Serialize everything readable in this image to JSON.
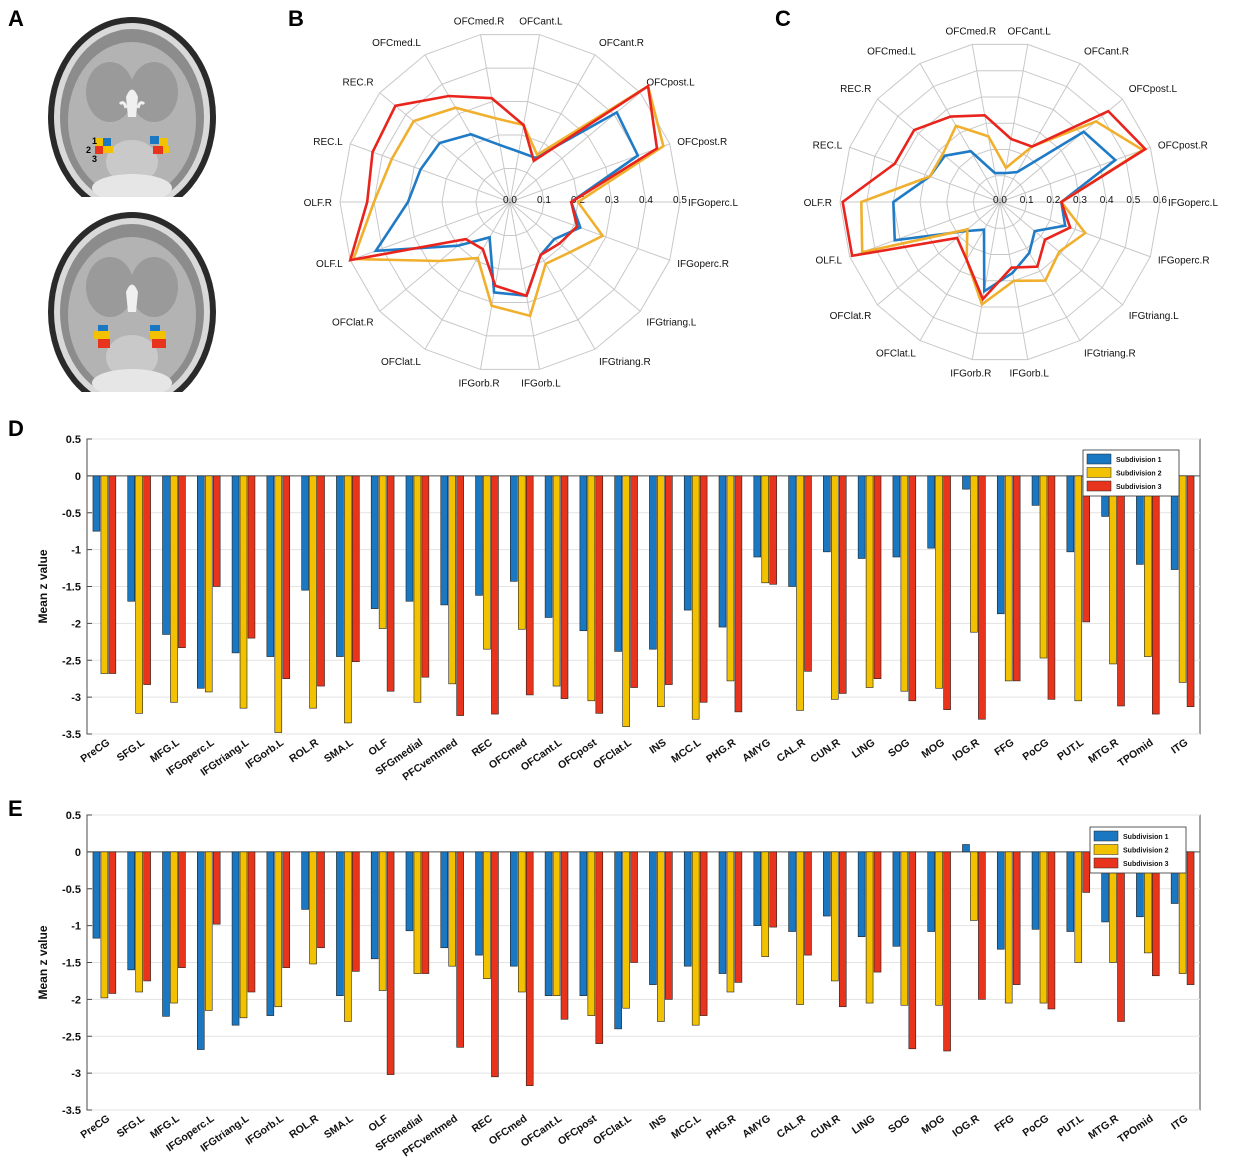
{
  "figure": {
    "panel_labels": [
      "A",
      "B",
      "C",
      "D",
      "E"
    ]
  },
  "colors": {
    "subdivision_1": "#1a78c2",
    "subdivision_2": "#f2c200",
    "subdivision_3": "#e8341c",
    "radar_s1": "#1f7bc6",
    "radar_s2": "#f0b02e",
    "radar_s3": "#e8241c",
    "grid": "#c8c8c8"
  },
  "chart_data": [
    {
      "panel": "B",
      "type": "radar",
      "axes": [
        "IFGoperc.L",
        "OFCpost.R",
        "OFCpost.L",
        "OFCant.R",
        "OFCant.L",
        "OFCmed.R",
        "OFCmed.L",
        "REC.R",
        "REC.L",
        "OLF.R",
        "OLF.L",
        "OFClat.R",
        "OFClat.L",
        "IFGorb.R",
        "IFGorb.L",
        "IFGtriang.R",
        "IFGtriang.L",
        "IFGoperc.R"
      ],
      "rings": [
        0.0,
        0.1,
        0.2,
        0.3,
        0.4,
        0.5
      ],
      "ring_labels": [
        "0.0",
        "0.1",
        "0.2",
        "0.3",
        "0.4",
        "0.5"
      ],
      "series": [
        {
          "values": [
            0.18,
            0.4,
            0.41,
            0.15,
            0.15,
            0.17,
            0.23,
            0.27,
            0.28,
            0.3,
            0.42,
            0.2,
            0.12,
            0.27,
            0.28,
            0.18,
            0.17,
            0.22
          ]
        },
        {
          "values": [
            0.2,
            0.48,
            0.53,
            0.16,
            0.23,
            0.25,
            0.32,
            0.37,
            0.37,
            0.4,
            0.49,
            0.27,
            0.19,
            0.31,
            0.34,
            0.21,
            0.23,
            0.29
          ]
        },
        {
          "values": [
            0.18,
            0.46,
            0.53,
            0.14,
            0.23,
            0.31,
            0.36,
            0.44,
            0.43,
            0.42,
            0.5,
            0.17,
            0.16,
            0.25,
            0.28,
            0.18,
            0.19,
            0.21
          ]
        }
      ]
    },
    {
      "panel": "C",
      "type": "radar",
      "axes": [
        "IFGoperc.L",
        "OFCpost.R",
        "OFCpost.L",
        "OFCant.R",
        "OFCant.L",
        "OFCmed.R",
        "OFCmed.L",
        "REC.R",
        "REC.L",
        "OLF.R",
        "OLF.L",
        "OFClat.R",
        "OFClat.L",
        "IFGorb.R",
        "IFGorb.L",
        "IFGtriang.R",
        "IFGtriang.L",
        "IFGoperc.R"
      ],
      "rings": [
        0.0,
        0.1,
        0.2,
        0.3,
        0.4,
        0.5,
        0.6
      ],
      "ring_labels": [
        "0.0",
        "0.1",
        "0.2",
        "0.3",
        "0.4",
        "0.5",
        "0.6"
      ],
      "series": [
        {
          "values": [
            0.23,
            0.46,
            0.41,
            0.13,
            0.11,
            0.11,
            0.22,
            0.27,
            0.28,
            0.4,
            0.42,
            0.17,
            0.12,
            0.34,
            0.27,
            0.22,
            0.17,
            0.26
          ]
        },
        {
          "values": [
            0.23,
            0.57,
            0.47,
            0.24,
            0.13,
            0.25,
            0.33,
            0.28,
            0.28,
            0.52,
            0.55,
            0.16,
            0.25,
            0.39,
            0.3,
            0.34,
            0.29,
            0.34
          ]
        },
        {
          "values": [
            0.23,
            0.58,
            0.53,
            0.24,
            0.24,
            0.33,
            0.37,
            0.42,
            0.42,
            0.59,
            0.59,
            0.21,
            0.25,
            0.37,
            0.25,
            0.28,
            0.22,
            0.28
          ]
        }
      ]
    },
    {
      "panel": "D",
      "type": "bar",
      "categories": [
        "PreCG",
        "SFG.L",
        "MFG.L",
        "IFGoperc.L",
        "IFGtriang.L",
        "IFGorb.L",
        "ROL.R",
        "SMA.L",
        "OLF",
        "SFGmedial",
        "PFCventmed",
        "REC",
        "OFCmed",
        "OFCant.L",
        "OFCpost",
        "OFClat.L",
        "INS",
        "MCC.L",
        "PHG.R",
        "AMYG",
        "CAL.R",
        "CUN.R",
        "LING",
        "SOG",
        "MOG",
        "IOG.R",
        "FFG",
        "PoCG",
        "PUT.L",
        "MTG.R",
        "TPOmid",
        "ITG"
      ],
      "category_labels": [
        "PreCG",
        "SFG.L",
        "MFG.L",
        "IFGoperc.L",
        "IFGtriang.L",
        "IFGorb.L",
        "ROL.R",
        "SMA.L",
        "OLF",
        "SFGmedial",
        "PFCventmed",
        "REC",
        "OFCmed",
        "OFCant.L",
        "OFCpost",
        "OFClat.L",
        "INS",
        "MCC.L",
        "PHG.R",
        "AMYG",
        "CAL.R",
        "CUN.R",
        "LING",
        "SOG",
        "MOG",
        "IOG.R",
        "FFG",
        "PoCG",
        "PUT.L",
        "MTG.R",
        "TPOmid",
        "ITG"
      ],
      "ylabel": "Mean z value",
      "ylim": [
        -3.5,
        0.5
      ],
      "yticks": [
        0.5,
        0,
        -0.5,
        -1,
        -1.5,
        -2,
        -2.5,
        -3,
        -3.5
      ],
      "ytick_labels": [
        "0.5",
        "0",
        "-0.5",
        "-1",
        "-1.5",
        "-2",
        "-2.5",
        "-3",
        "-3.5"
      ],
      "legend": [
        "Subdivision 1",
        "Subdivision 2",
        "Subdivision 3"
      ],
      "legend_position": "top-right",
      "series": [
        {
          "name": "Subdivision 1",
          "values": [
            -0.75,
            -1.7,
            -2.15,
            -2.88,
            -2.4,
            -2.45,
            -1.55,
            -2.45,
            -1.8,
            -1.7,
            -1.75,
            -1.62,
            -1.43,
            -1.92,
            -2.1,
            -2.38,
            -2.35,
            -1.82,
            -2.05,
            -1.1,
            -1.5,
            -1.03,
            -1.12,
            -1.1,
            -0.98,
            -0.18,
            -1.87,
            -0.4,
            -1.03,
            -0.55,
            -1.2,
            -1.27
          ]
        },
        {
          "name": "Subdivision 2",
          "values": [
            -2.68,
            -3.22,
            -3.07,
            -2.93,
            -3.15,
            -3.48,
            -3.15,
            -3.35,
            -2.07,
            -3.07,
            -2.82,
            -2.35,
            -2.08,
            -2.85,
            -3.05,
            -3.4,
            -3.13,
            -3.3,
            -2.78,
            -1.45,
            -3.18,
            -3.03,
            -2.87,
            -2.92,
            -2.88,
            -2.12,
            -2.78,
            -2.47,
            -3.05,
            -2.55,
            -2.45,
            -2.8
          ]
        },
        {
          "name": "Subdivision 3",
          "values": [
            -2.68,
            -2.83,
            -2.33,
            -1.5,
            -2.2,
            -2.75,
            -2.85,
            -2.52,
            -2.92,
            -2.73,
            -3.25,
            -3.23,
            -2.97,
            -3.02,
            -3.22,
            -2.87,
            -2.83,
            -3.07,
            -3.2,
            -1.47,
            -2.65,
            -2.95,
            -2.75,
            -3.05,
            -3.17,
            -3.3,
            -2.78,
            -3.03,
            -1.98,
            -3.12,
            -3.23,
            -3.13
          ]
        }
      ]
    },
    {
      "panel": "E",
      "type": "bar",
      "categories": [
        "PreCG",
        "SFG.L",
        "MFG.L",
        "IFGoperc.L",
        "IFGtriang.L",
        "IFGorb.L",
        "ROL.R",
        "SMA.L",
        "OLF",
        "SFGmedial",
        "PFCventmed",
        "REC",
        "OFCmed",
        "OFCant.L",
        "OFCpost",
        "OFClat.L",
        "INS",
        "MCC.L",
        "PHG.R",
        "AMYG",
        "CAL.R",
        "CUN.R",
        "LING",
        "SOG",
        "MOG",
        "IOG.R",
        "FFG",
        "PoCG",
        "PUT.L",
        "MTG.R",
        "TPOmid",
        "ITG"
      ],
      "category_labels": [
        "PreCG",
        "SFG.L",
        "MFG.L",
        "IFGoperc.L",
        "IFGtriang.L",
        "IFGorb.L",
        "ROL.R",
        "SMA.L",
        "OLF",
        "SFGmedial",
        "PFCventmed",
        "REC",
        "OFCmed",
        "OFCant.L",
        "OFCpost",
        "OFClat.L",
        "INS",
        "MCC.L",
        "PHG.R",
        "AMYG",
        "CAL.R",
        "CUN.R",
        "LING",
        "SOG",
        "MOG",
        "IOG.R",
        "FFG",
        "PoCG",
        "PUT.L",
        "MTG.R",
        "TPOmid",
        "ITG"
      ],
      "ylabel": "Mean z value",
      "ylim": [
        -3.5,
        0.5
      ],
      "yticks": [
        0.5,
        0,
        -0.5,
        -1,
        -1.5,
        -2,
        -2.5,
        -3,
        -3.5
      ],
      "ytick_labels": [
        "0.5",
        "0",
        "-0.5",
        "-1",
        "-1.5",
        "-2",
        "-2.5",
        "-3",
        "-3.5"
      ],
      "legend": [
        "Subdivision 1",
        "Subdivision 2",
        "Subdivision 3"
      ],
      "legend_position": "top-right",
      "series": [
        {
          "name": "Subdivision 1",
          "values": [
            -1.17,
            -1.6,
            -2.23,
            -2.68,
            -2.35,
            -2.22,
            -0.78,
            -1.95,
            -1.45,
            -1.07,
            -1.3,
            -1.4,
            -1.55,
            -1.95,
            -1.95,
            -2.4,
            -1.8,
            -1.55,
            -1.65,
            -1.0,
            -1.08,
            -0.87,
            -1.15,
            -1.28,
            -1.08,
            0.1,
            -1.32,
            -1.05,
            -1.08,
            -0.95,
            -0.88,
            -0.7
          ]
        },
        {
          "name": "Subdivision 2",
          "values": [
            -1.98,
            -1.9,
            -2.05,
            -2.15,
            -2.25,
            -2.1,
            -1.52,
            -2.3,
            -1.88,
            -1.65,
            -1.55,
            -1.72,
            -1.9,
            -1.95,
            -2.22,
            -2.12,
            -2.3,
            -2.35,
            -1.9,
            -1.42,
            -2.07,
            -1.75,
            -2.05,
            -2.08,
            -2.08,
            -0.93,
            -2.05,
            -2.05,
            -1.5,
            -1.5,
            -1.37,
            -1.65
          ]
        },
        {
          "name": "Subdivision 3",
          "values": [
            -1.92,
            -1.75,
            -1.57,
            -0.98,
            -1.9,
            -1.57,
            -1.3,
            -1.62,
            -3.02,
            -1.65,
            -2.65,
            -3.05,
            -3.17,
            -2.27,
            -2.6,
            -1.5,
            -2.0,
            -2.22,
            -1.77,
            -1.02,
            -1.4,
            -2.1,
            -1.63,
            -2.67,
            -2.7,
            -2.0,
            -1.8,
            -2.13,
            -0.55,
            -2.3,
            -1.68,
            -1.8
          ]
        }
      ]
    }
  ]
}
